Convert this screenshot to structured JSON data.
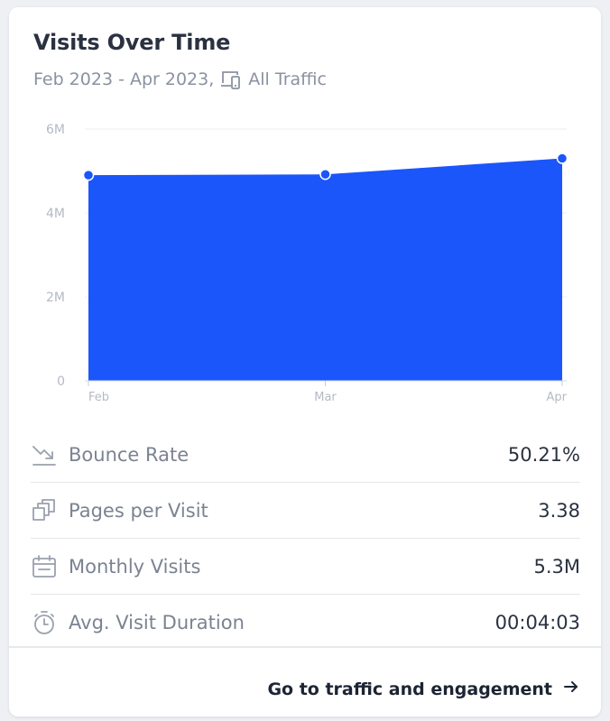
{
  "card": {
    "title": "Visits Over Time",
    "date_range": "Feb 2023 - Apr 2023,",
    "traffic_icon": "devices-icon",
    "traffic_label": "All Traffic"
  },
  "chart_data": {
    "type": "area",
    "categories": [
      "Feb",
      "Mar",
      "Apr"
    ],
    "values": [
      4.9,
      4.92,
      5.3
    ],
    "y_unit": "M",
    "ylim": [
      0,
      6
    ],
    "y_ticks": [
      "0",
      "2M",
      "4M",
      "6M"
    ],
    "grid": true,
    "color": "#1a56fa"
  },
  "metrics": [
    {
      "icon": "trend-down-icon",
      "label": "Bounce Rate",
      "value": "50.21%"
    },
    {
      "icon": "pages-icon",
      "label": "Pages per Visit",
      "value": "3.38"
    },
    {
      "icon": "calendar-icon",
      "label": "Monthly Visits",
      "value": "5.3M"
    },
    {
      "icon": "stopwatch-icon",
      "label": "Avg. Visit Duration",
      "value": "00:04:03"
    }
  ],
  "footer": {
    "link_label": "Go to traffic and engagement",
    "arrow_icon": "arrow-right-icon"
  }
}
